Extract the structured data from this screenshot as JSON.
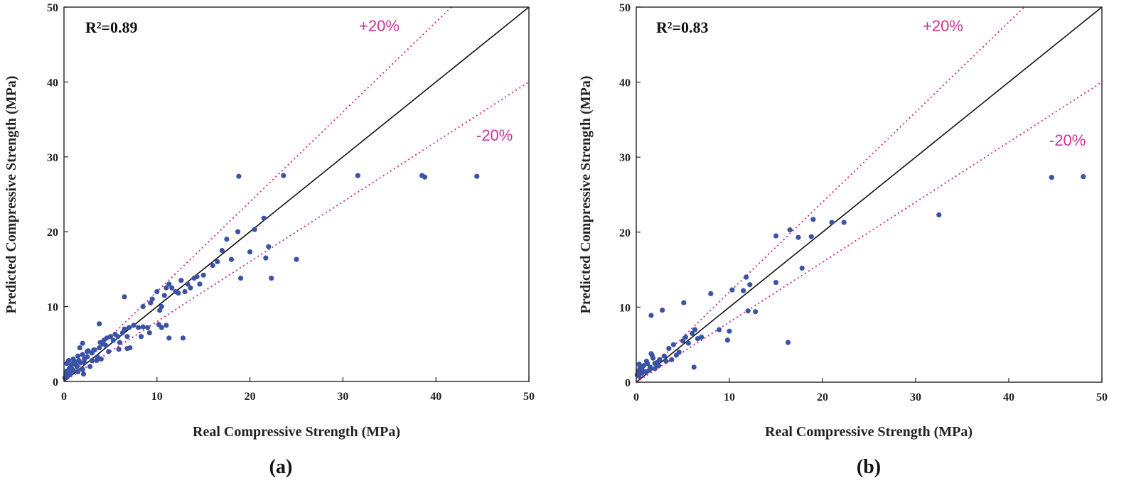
{
  "colors": {
    "point": "#3a53a4",
    "band": "#cc3399",
    "identity": "#111111",
    "axis": "#222222"
  },
  "chart_data": [
    {
      "type": "scatter",
      "panel_label": "(a)",
      "annotation": "R²=0.89",
      "band_labels": {
        "upper": "+20%",
        "lower": "-20%"
      },
      "xlabel": "Real Compressive Strength (MPa)",
      "ylabel": "Predicted Compressive Strength (MPa)",
      "xlim": [
        0,
        50
      ],
      "ylim": [
        0,
        50
      ],
      "x_ticks": [
        "0",
        "10",
        "20",
        "30",
        "40",
        "50"
      ],
      "y_ticks": [
        "0",
        "10",
        "20",
        "30",
        "40",
        "50"
      ],
      "reference_lines": [
        {
          "name": "identity",
          "slope": 1.0
        },
        {
          "name": "+20%",
          "slope": 1.2
        },
        {
          "name": "-20%",
          "slope": 0.8
        }
      ],
      "x": [
        0.1,
        0.2,
        0.3,
        0.4,
        0.5,
        0.6,
        0.7,
        0.8,
        1.0,
        1.2,
        1.4,
        1.5,
        0.3,
        0.5,
        0.8,
        1.0,
        1.3,
        1.6,
        1.8,
        2.0,
        2.2,
        2.5,
        2.8,
        3.0,
        1.0,
        1.5,
        2.0,
        2.5,
        3.0,
        3.2,
        3.5,
        3.8,
        4.0,
        4.2,
        4.5,
        2.2,
        2.6,
        3.3,
        3.6,
        3.9,
        4.3,
        4.6,
        4.8,
        5.0,
        5.3,
        5.5,
        5.8,
        6.0,
        6.3,
        6.5,
        6.8,
        7.0,
        7.5,
        8.0,
        8.3,
        8.5,
        9.0,
        9.3,
        9.5,
        10.0,
        10.3,
        10.5,
        10.8,
        11.0,
        11.3,
        11.6,
        12.0,
        12.3,
        12.6,
        13.0,
        13.3,
        13.6,
        14.0,
        14.3,
        14.6,
        15.0,
        16.0,
        16.5,
        17.0,
        17.5,
        18.0,
        18.7,
        19.0,
        20.0,
        20.5,
        21.5,
        21.7,
        22.0,
        22.3,
        25.0,
        11.3,
        12.8,
        10.5,
        6.5,
        3.8,
        2.0,
        1.7,
        2.1,
        5.9,
        6.8,
        7.1,
        8.5,
        9.2,
        10.2,
        11.0,
        18.8,
        23.6,
        31.6,
        38.5,
        38.8,
        44.4
      ],
      "y": [
        0.5,
        1.0,
        1.4,
        0.7,
        1.2,
        1.8,
        1.0,
        2.2,
        1.5,
        2.6,
        2.0,
        1.3,
        2.4,
        2.8,
        1.8,
        2.5,
        2.2,
        2.8,
        2.5,
        1.6,
        3.0,
        3.3,
        2.0,
        2.8,
        3.0,
        3.4,
        3.6,
        4.0,
        3.8,
        4.2,
        2.8,
        4.5,
        3.0,
        5.0,
        4.8,
        2.5,
        4.1,
        4.2,
        3.3,
        5.2,
        5.5,
        5.8,
        4.0,
        6.0,
        5.5,
        6.3,
        6.0,
        5.2,
        6.5,
        7.0,
        6.0,
        7.2,
        7.5,
        7.2,
        6.0,
        10.0,
        7.2,
        10.5,
        11.0,
        12.0,
        9.5,
        10.0,
        11.5,
        12.5,
        13.0,
        12.5,
        12.0,
        11.8,
        13.5,
        12.0,
        13.0,
        12.5,
        13.8,
        14.0,
        13.0,
        14.2,
        15.5,
        16.0,
        17.5,
        19.0,
        16.3,
        20.0,
        13.8,
        17.3,
        20.3,
        21.8,
        16.5,
        18.0,
        13.8,
        16.3,
        5.8,
        5.8,
        7.2,
        11.3,
        7.7,
        5.1,
        4.5,
        1.0,
        4.3,
        4.4,
        4.5,
        7.3,
        6.5,
        7.6,
        7.5,
        27.4,
        27.5,
        27.5,
        27.5,
        27.3,
        27.4
      ]
    },
    {
      "type": "scatter",
      "panel_label": "(b)",
      "annotation": "R²=0.83",
      "band_labels": {
        "upper": "+20%",
        "lower": "-20%"
      },
      "xlabel": "Real Compressive Strength (MPa)",
      "ylabel": "Predicted Compressive Strength (MPa)",
      "xlim": [
        0,
        50
      ],
      "ylim": [
        0,
        50
      ],
      "x_ticks": [
        "0",
        "10",
        "20",
        "30",
        "40",
        "50"
      ],
      "y_ticks": [
        "0",
        "10",
        "20",
        "30",
        "40",
        "50"
      ],
      "reference_lines": [
        {
          "name": "identity",
          "slope": 1.0
        },
        {
          "name": "+20%",
          "slope": 1.2
        },
        {
          "name": "-20%",
          "slope": 0.8
        }
      ],
      "x": [
        0.1,
        0.2,
        0.3,
        0.4,
        0.5,
        0.6,
        0.8,
        1.0,
        1.2,
        1.5,
        1.8,
        2.0,
        2.2,
        0.3,
        0.7,
        1.1,
        1.4,
        1.7,
        2.4,
        1.6,
        2.0,
        2.5,
        3.0,
        3.2,
        3.5,
        3.8,
        4.0,
        4.3,
        4.6,
        5.0,
        5.3,
        5.6,
        6.0,
        6.3,
        6.6,
        7.0,
        1.6,
        2.8,
        5.1,
        6.2,
        8.0,
        8.9,
        9.8,
        10.0,
        10.3,
        11.5,
        11.8,
        12.0,
        12.2,
        12.8,
        15.0,
        15.0,
        16.3,
        16.5,
        17.4,
        17.8,
        18.8,
        19.0,
        21.0,
        22.3,
        32.5,
        44.6,
        48.0
      ],
      "y": [
        1.0,
        1.5,
        0.8,
        2.0,
        1.2,
        1.8,
        2.2,
        1.4,
        2.5,
        2.0,
        3.2,
        1.8,
        2.6,
        2.4,
        1.3,
        2.8,
        1.6,
        3.6,
        2.2,
        3.8,
        2.5,
        3.0,
        3.5,
        2.8,
        4.5,
        3.0,
        5.0,
        3.6,
        4.0,
        5.5,
        6.0,
        5.2,
        6.5,
        7.0,
        5.8,
        6.0,
        8.9,
        9.6,
        10.6,
        2.0,
        11.8,
        7.0,
        5.6,
        6.8,
        12.3,
        12.2,
        14.0,
        9.5,
        13.0,
        9.4,
        19.5,
        13.3,
        5.3,
        20.3,
        19.3,
        15.2,
        19.4,
        21.7,
        21.3,
        21.3,
        22.3,
        27.3,
        27.4
      ]
    }
  ]
}
